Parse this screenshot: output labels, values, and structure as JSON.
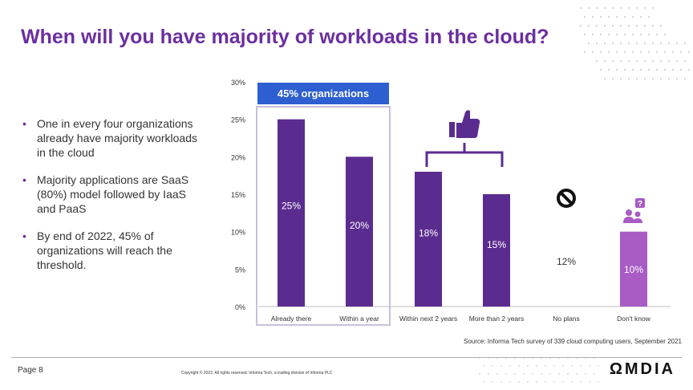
{
  "slide": {
    "title": "When will you have majority of workloads in the cloud?",
    "bullets": [
      "One in every four organizations already have majority workloads in the cloud",
      "Majority applications are SaaS (80%) model followed by IaaS and PaaS",
      "By end of 2022, 45% of organizations will reach the threshold."
    ],
    "source": "Source: Informa Tech survey of 339 cloud computing users, September 2021",
    "page": "Page 8",
    "copyright": "Copyright © 2022. All rights reserved. Informa Tech, a trading division of Informa PLC",
    "logo": "ΩMDIA"
  },
  "colors": {
    "title": "#6b2fa0",
    "bar_dark": "#5b2c8f",
    "bar_light": "#a85cc4",
    "callout_bg": "#2e5fd0",
    "callout_border": "#c8c0dc"
  },
  "chart_data": {
    "type": "bar",
    "categories": [
      "Already there",
      "Within a year",
      "Within next 2 years",
      "More than 2 years",
      "No plans",
      "Don't know"
    ],
    "values": [
      25,
      20,
      18,
      15,
      12,
      10
    ],
    "data_labels": [
      "25%",
      "20%",
      "18%",
      "15%",
      "12%",
      "10%"
    ],
    "ylim": [
      0,
      30
    ],
    "yticks": [
      "0%",
      "5%",
      "10%",
      "15%",
      "20%",
      "25%",
      "30%"
    ],
    "grid": false,
    "callout": "45% organizations",
    "icons": [
      "thumbs-up-icon",
      "prohibited-icon",
      "people-question-icon"
    ]
  }
}
